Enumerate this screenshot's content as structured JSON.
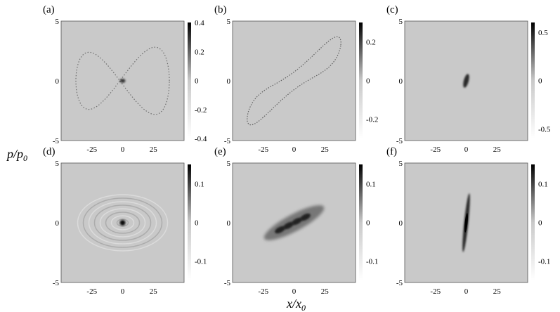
{
  "figure": {
    "ylabel": "p/p",
    "ylabel_sub": "0",
    "xlabel": "x/x",
    "xlabel_sub": "0"
  },
  "chart_data": [
    {
      "panel": "(a)",
      "type": "heatmap",
      "xticks": [
        "-25",
        "0",
        "25"
      ],
      "yticks": [
        "5",
        "0",
        "-5"
      ],
      "xlim": [
        -50,
        50
      ],
      "ylim": [
        -5,
        5
      ],
      "colorbar_ticks": [
        "0.4",
        "0.2",
        "0",
        "-0.2",
        "-0.4"
      ],
      "colorbar_range": [
        -0.4,
        0.4
      ],
      "pattern": "lemniscate",
      "background": "#c9c9c9"
    },
    {
      "panel": "(b)",
      "type": "heatmap",
      "xticks": [
        "-25",
        "0",
        "25"
      ],
      "yticks": [
        "5",
        "0",
        "-5"
      ],
      "xlim": [
        -50,
        50
      ],
      "ylim": [
        -5,
        5
      ],
      "colorbar_ticks": [
        "0.2",
        "0",
        "-0.2"
      ],
      "colorbar_range": [
        -0.3,
        0.3
      ],
      "pattern": "tilted-loop",
      "background": "#c9c9c9"
    },
    {
      "panel": "(c)",
      "type": "heatmap",
      "xticks": [
        "-25",
        "0",
        "25"
      ],
      "yticks": [
        "5",
        "0",
        "-5"
      ],
      "xlim": [
        -50,
        50
      ],
      "ylim": [
        -5,
        5
      ],
      "colorbar_ticks": [
        "0.5",
        "0",
        "-0.5"
      ],
      "colorbar_range": [
        -0.6,
        0.6
      ],
      "pattern": "small-blob",
      "background": "#c9c9c9"
    },
    {
      "panel": "(d)",
      "type": "heatmap",
      "xticks": [
        "-25",
        "0",
        "25"
      ],
      "yticks": [
        "5",
        "0",
        "-5"
      ],
      "xlim": [
        -50,
        50
      ],
      "ylim": [
        -5,
        5
      ],
      "colorbar_ticks": [
        "0.1",
        "0",
        "-0.1"
      ],
      "colorbar_range": [
        -0.15,
        0.15
      ],
      "pattern": "x-interference",
      "background": "#c9c9c9"
    },
    {
      "panel": "(e)",
      "type": "heatmap",
      "xticks": [
        "-25",
        "0",
        "25"
      ],
      "yticks": [
        "5",
        "0",
        "-5"
      ],
      "xlim": [
        -50,
        50
      ],
      "ylim": [
        -5,
        5
      ],
      "colorbar_ticks": [
        "0.1",
        "0",
        "-0.1"
      ],
      "colorbar_range": [
        -0.15,
        0.15
      ],
      "pattern": "tilted-blob",
      "background": "#c9c9c9"
    },
    {
      "panel": "(f)",
      "type": "heatmap",
      "xticks": [
        "-25",
        "0",
        "25"
      ],
      "yticks": [
        "5",
        "0",
        "-5"
      ],
      "xlim": [
        -50,
        50
      ],
      "ylim": [
        -5,
        5
      ],
      "colorbar_ticks": [
        "0.1",
        "0",
        "-0.1"
      ],
      "colorbar_range": [
        -0.15,
        0.15
      ],
      "pattern": "narrow-ellipse",
      "background": "#c9c9c9"
    }
  ]
}
